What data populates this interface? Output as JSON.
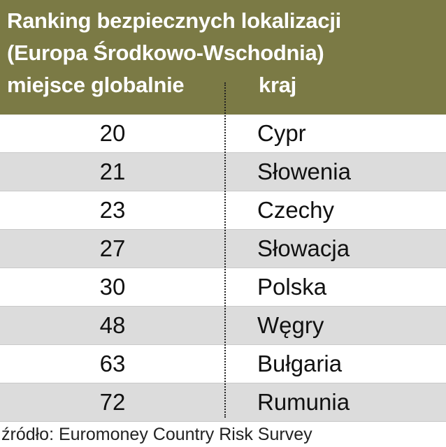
{
  "chart_data": {
    "type": "table",
    "title_line1": "Ranking bezpiecznych lokalizacji",
    "title_line2": "(Europa Środkowo-Wschodnia)",
    "columns": [
      "miejsce globalnie",
      "kraj"
    ],
    "rows": [
      {
        "rank": "20",
        "country": "Cypr"
      },
      {
        "rank": "21",
        "country": "Słowenia"
      },
      {
        "rank": "23",
        "country": "Czechy"
      },
      {
        "rank": "27",
        "country": "Słowacja"
      },
      {
        "rank": "30",
        "country": "Polska"
      },
      {
        "rank": "48",
        "country": "Węgry"
      },
      {
        "rank": "63",
        "country": "Bułgaria"
      },
      {
        "rank": "72",
        "country": "Rumunia"
      }
    ],
    "source": "źródło: Euromoney Country Risk Survey",
    "colors": {
      "header_bg": "#7b7a45",
      "alt_row_bg": "#dcdcdc"
    }
  }
}
